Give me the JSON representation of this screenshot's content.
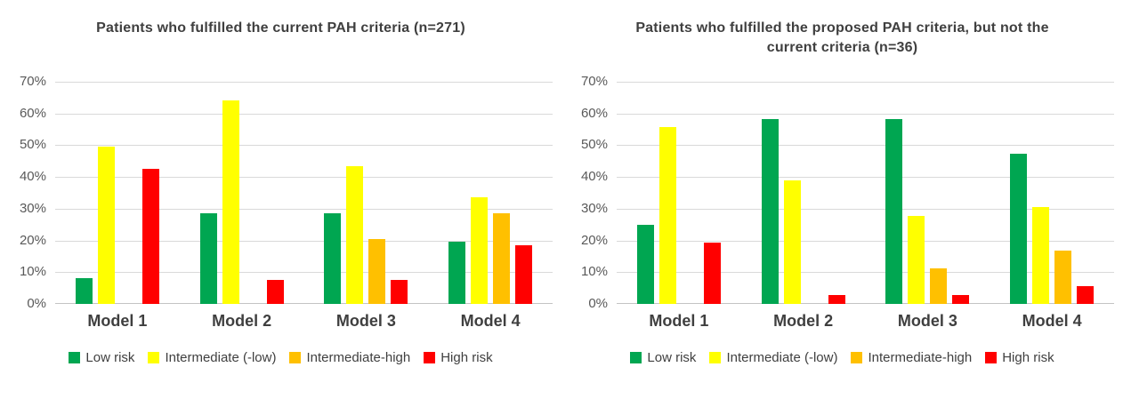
{
  "figure": {
    "background": "#ffffff",
    "title_color": "#3f3f3f",
    "tick_label_color": "#595959",
    "gridline_color": "#d9d9d9"
  },
  "chart_data": [
    {
      "type": "bar",
      "title": "Patients who fulfilled the current PAH criteria (n=271)",
      "categories": [
        "Model 1",
        "Model 2",
        "Model 3",
        "Model 4"
      ],
      "series": [
        {
          "name": "Low risk",
          "color": "#00A651",
          "values": [
            8,
            28.5,
            28.5,
            19.5
          ]
        },
        {
          "name": "Intermediate (-low)",
          "color": "#FFFF00",
          "values": [
            49.5,
            64,
            43.5,
            33.5
          ]
        },
        {
          "name": "Intermediate-high",
          "color": "#FFC000",
          "values": [
            0,
            0,
            20.5,
            28.5
          ]
        },
        {
          "name": "High risk",
          "color": "#FF0000",
          "values": [
            42.5,
            7.5,
            7.5,
            18.5
          ]
        }
      ],
      "xlabel": "",
      "ylabel": "",
      "ylim": [
        0,
        70
      ],
      "ytick_step": 10,
      "ytick_labels": [
        "0%",
        "10%",
        "20%",
        "30%",
        "40%",
        "50%",
        "60%",
        "70%"
      ],
      "grid": true,
      "legend_position": "bottom",
      "legend": [
        "Low risk",
        "Intermediate (-low)",
        "Intermediate-high",
        "High risk"
      ]
    },
    {
      "type": "bar",
      "title": "Patients who fulfilled the proposed PAH criteria, but not the current criteria (n=36)",
      "categories": [
        "Model 1",
        "Model 2",
        "Model 3",
        "Model 4"
      ],
      "series": [
        {
          "name": "Low risk",
          "color": "#00A651",
          "values": [
            25,
            58.3,
            58.3,
            47.2
          ]
        },
        {
          "name": "Intermediate (-low)",
          "color": "#FFFF00",
          "values": [
            55.6,
            38.9,
            27.8,
            30.6
          ]
        },
        {
          "name": "Intermediate-high",
          "color": "#FFC000",
          "values": [
            0,
            0,
            11.1,
            16.7
          ]
        },
        {
          "name": "High risk",
          "color": "#FF0000",
          "values": [
            19.4,
            2.8,
            2.8,
            5.6
          ]
        }
      ],
      "xlabel": "",
      "ylabel": "",
      "ylim": [
        0,
        70
      ],
      "ytick_step": 10,
      "ytick_labels": [
        "0%",
        "10%",
        "20%",
        "30%",
        "40%",
        "50%",
        "60%",
        "70%"
      ],
      "grid": true,
      "legend_position": "bottom",
      "legend": [
        "Low risk",
        "Intermediate (-low)",
        "Intermediate-high",
        "High risk"
      ]
    }
  ]
}
